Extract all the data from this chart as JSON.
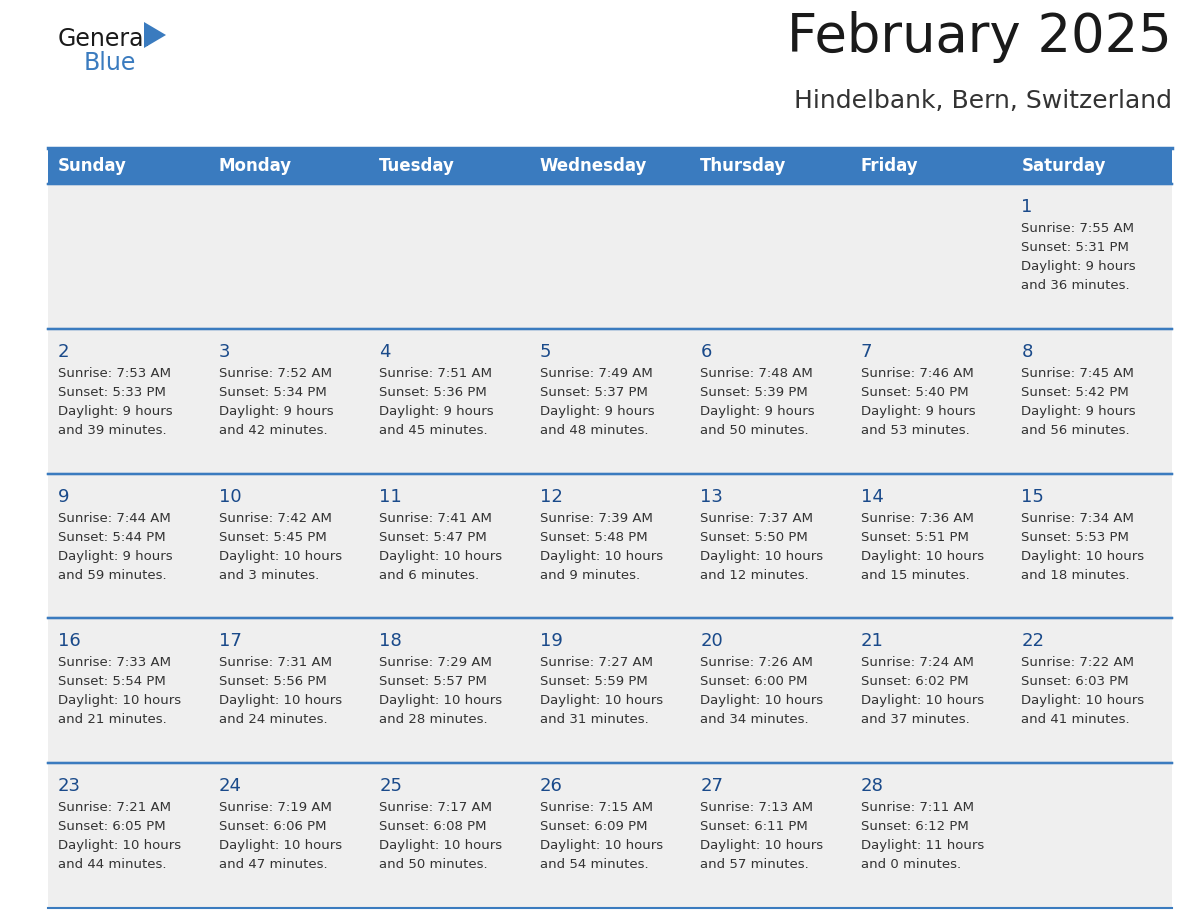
{
  "title": "February 2025",
  "subtitle": "Hindelbank, Bern, Switzerland",
  "header_bg": "#3a7bbf",
  "header_text": "#ffffff",
  "cell_bg_light": "#efefef",
  "cell_bg_white": "#ffffff",
  "day_names": [
    "Sunday",
    "Monday",
    "Tuesday",
    "Wednesday",
    "Thursday",
    "Friday",
    "Saturday"
  ],
  "title_color": "#1a1a1a",
  "subtitle_color": "#333333",
  "line_color": "#3a7bbf",
  "text_color": "#333333",
  "day_number_color": "#1a4a8a",
  "logo_general_color": "#1a1a1a",
  "logo_blue_color": "#3a7bbf",
  "logo_triangle_color": "#3a7bbf",
  "calendar": [
    [
      null,
      null,
      null,
      null,
      null,
      null,
      {
        "day": 1,
        "sunrise": "7:55 AM",
        "sunset": "5:31 PM",
        "daylight": "9 hours and 36 minutes."
      }
    ],
    [
      {
        "day": 2,
        "sunrise": "7:53 AM",
        "sunset": "5:33 PM",
        "daylight": "9 hours and 39 minutes."
      },
      {
        "day": 3,
        "sunrise": "7:52 AM",
        "sunset": "5:34 PM",
        "daylight": "9 hours and 42 minutes."
      },
      {
        "day": 4,
        "sunrise": "7:51 AM",
        "sunset": "5:36 PM",
        "daylight": "9 hours and 45 minutes."
      },
      {
        "day": 5,
        "sunrise": "7:49 AM",
        "sunset": "5:37 PM",
        "daylight": "9 hours and 48 minutes."
      },
      {
        "day": 6,
        "sunrise": "7:48 AM",
        "sunset": "5:39 PM",
        "daylight": "9 hours and 50 minutes."
      },
      {
        "day": 7,
        "sunrise": "7:46 AM",
        "sunset": "5:40 PM",
        "daylight": "9 hours and 53 minutes."
      },
      {
        "day": 8,
        "sunrise": "7:45 AM",
        "sunset": "5:42 PM",
        "daylight": "9 hours and 56 minutes."
      }
    ],
    [
      {
        "day": 9,
        "sunrise": "7:44 AM",
        "sunset": "5:44 PM",
        "daylight": "9 hours and 59 minutes."
      },
      {
        "day": 10,
        "sunrise": "7:42 AM",
        "sunset": "5:45 PM",
        "daylight": "10 hours and 3 minutes."
      },
      {
        "day": 11,
        "sunrise": "7:41 AM",
        "sunset": "5:47 PM",
        "daylight": "10 hours and 6 minutes."
      },
      {
        "day": 12,
        "sunrise": "7:39 AM",
        "sunset": "5:48 PM",
        "daylight": "10 hours and 9 minutes."
      },
      {
        "day": 13,
        "sunrise": "7:37 AM",
        "sunset": "5:50 PM",
        "daylight": "10 hours and 12 minutes."
      },
      {
        "day": 14,
        "sunrise": "7:36 AM",
        "sunset": "5:51 PM",
        "daylight": "10 hours and 15 minutes."
      },
      {
        "day": 15,
        "sunrise": "7:34 AM",
        "sunset": "5:53 PM",
        "daylight": "10 hours and 18 minutes."
      }
    ],
    [
      {
        "day": 16,
        "sunrise": "7:33 AM",
        "sunset": "5:54 PM",
        "daylight": "10 hours and 21 minutes."
      },
      {
        "day": 17,
        "sunrise": "7:31 AM",
        "sunset": "5:56 PM",
        "daylight": "10 hours and 24 minutes."
      },
      {
        "day": 18,
        "sunrise": "7:29 AM",
        "sunset": "5:57 PM",
        "daylight": "10 hours and 28 minutes."
      },
      {
        "day": 19,
        "sunrise": "7:27 AM",
        "sunset": "5:59 PM",
        "daylight": "10 hours and 31 minutes."
      },
      {
        "day": 20,
        "sunrise": "7:26 AM",
        "sunset": "6:00 PM",
        "daylight": "10 hours and 34 minutes."
      },
      {
        "day": 21,
        "sunrise": "7:24 AM",
        "sunset": "6:02 PM",
        "daylight": "10 hours and 37 minutes."
      },
      {
        "day": 22,
        "sunrise": "7:22 AM",
        "sunset": "6:03 PM",
        "daylight": "10 hours and 41 minutes."
      }
    ],
    [
      {
        "day": 23,
        "sunrise": "7:21 AM",
        "sunset": "6:05 PM",
        "daylight": "10 hours and 44 minutes."
      },
      {
        "day": 24,
        "sunrise": "7:19 AM",
        "sunset": "6:06 PM",
        "daylight": "10 hours and 47 minutes."
      },
      {
        "day": 25,
        "sunrise": "7:17 AM",
        "sunset": "6:08 PM",
        "daylight": "10 hours and 50 minutes."
      },
      {
        "day": 26,
        "sunrise": "7:15 AM",
        "sunset": "6:09 PM",
        "daylight": "10 hours and 54 minutes."
      },
      {
        "day": 27,
        "sunrise": "7:13 AM",
        "sunset": "6:11 PM",
        "daylight": "10 hours and 57 minutes."
      },
      {
        "day": 28,
        "sunrise": "7:11 AM",
        "sunset": "6:12 PM",
        "daylight": "11 hours and 0 minutes."
      },
      null
    ]
  ]
}
